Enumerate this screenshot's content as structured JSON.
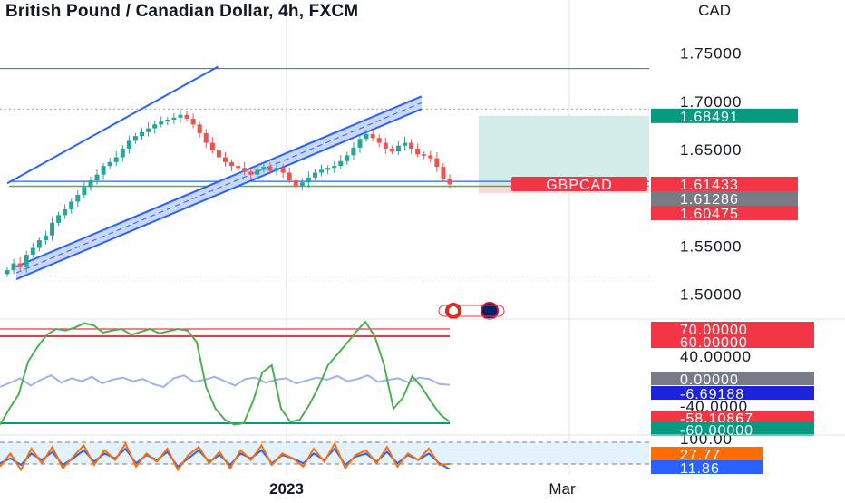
{
  "header": {
    "title": "British Pound / Canadian Dollar, 4h, FXCM",
    "currency": "CAD"
  },
  "colors": {
    "up": "#26a69a",
    "down": "#ef5350",
    "channel": "#2962ff",
    "channel_fill": "#cbd8f5",
    "target_zone": "#d3ece7",
    "stop_zone": "#fbdada",
    "stoch_k": "#4caf50",
    "stoch_d": "#e53935",
    "cci": "#9fb3ea",
    "osc_fast": "#ff6d00",
    "osc_slow": "#2962ff",
    "hline_red": "#f23645",
    "hline_green": "#089981",
    "text_blue": "#2962ff"
  },
  "chart_data": [
    {
      "type": "candlestick",
      "symbol": "GBPCAD",
      "timeframe": "4h",
      "y_ticks": [
        "1.75000",
        "1.70000",
        "1.65000",
        "1.55000",
        "1.50000"
      ],
      "ylim": [
        1.495,
        1.805
      ],
      "close_series": [
        1.525,
        1.532,
        1.528,
        1.541,
        1.548,
        1.556,
        1.561,
        1.574,
        1.582,
        1.588,
        1.596,
        1.603,
        1.611,
        1.618,
        1.624,
        1.633,
        1.637,
        1.642,
        1.651,
        1.659,
        1.664,
        1.668,
        1.672,
        1.676,
        1.679,
        1.681,
        1.683,
        1.686,
        1.682,
        1.676,
        1.667,
        1.657,
        1.649,
        1.642,
        1.637,
        1.633,
        1.631,
        1.627,
        1.624,
        1.629,
        1.632,
        1.628,
        1.631,
        1.626,
        1.618,
        1.612,
        1.616,
        1.621,
        1.626,
        1.629,
        1.631,
        1.633,
        1.638,
        1.644,
        1.652,
        1.661,
        1.666,
        1.662,
        1.657,
        1.651,
        1.648,
        1.654,
        1.657,
        1.651,
        1.645,
        1.644,
        1.641,
        1.632,
        1.619,
        1.614
      ],
      "x_ticks": [
        "2023",
        "Mar"
      ],
      "price_tags": [
        {
          "label": "1.68491",
          "color": "#089981"
        },
        {
          "label": "1.61433",
          "color": "#f23645"
        },
        {
          "label": "1.61286",
          "color": "#787b86"
        },
        {
          "label": "1.60475",
          "color": "#f23645"
        }
      ],
      "symbol_tag": "GBPCAD",
      "position": {
        "target": 1.68491,
        "entry": 1.61433,
        "stop": 1.60475
      },
      "horizontal_levels": [
        1.734,
        1.692,
        1.617,
        1.612,
        1.519
      ],
      "channels": [
        {
          "name": "upper",
          "from": [
            0,
            1.615
          ],
          "to": [
            34,
            1.736
          ]
        },
        {
          "name": "lower",
          "from": [
            0,
            1.525
          ],
          "to": [
            68,
            1.692
          ]
        }
      ]
    },
    {
      "type": "line",
      "name": "stochastic / CCI panel",
      "y_ticks": [
        "70.00000",
        "60.00000",
        "40.00000",
        "0.00000",
        "-6.69188",
        "-40.0000",
        "-58.10867",
        "-60.00000"
      ],
      "levels": [
        70,
        60,
        -60
      ],
      "series": [
        {
          "color": "#4caf50",
          "values": [
            -62,
            -40,
            -20,
            25,
            45,
            62,
            70,
            68,
            72,
            78,
            75,
            65,
            68,
            70,
            62,
            66,
            70,
            64,
            67,
            70,
            68,
            52,
            -10,
            -40,
            -55,
            -62,
            -60,
            -30,
            10,
            20,
            -40,
            -58,
            -55,
            -35,
            -10,
            20,
            35,
            50,
            66,
            80,
            60,
            20,
            -40,
            -25,
            5,
            -10,
            -30,
            -48,
            -58
          ]
        },
        {
          "color": "#9fb3ea",
          "values": [
            -10,
            -4,
            2,
            -8,
            0,
            6,
            -4,
            2,
            -2,
            4,
            -5,
            0,
            3,
            -2,
            1,
            -6,
            -10,
            2,
            6,
            -3,
            0,
            4,
            -2,
            -8,
            1,
            3,
            -4,
            0,
            2,
            -5,
            -1,
            3,
            0,
            5,
            -2,
            1,
            6,
            -3,
            0,
            2,
            -4,
            3,
            1,
            -6,
            -7
          ]
        }
      ],
      "current": [
        -6.69188,
        -58.10867
      ]
    },
    {
      "type": "line",
      "name": "oscillator panel",
      "y_ticks": [
        "100.00",
        "27.77",
        "11.86"
      ],
      "series": [
        {
          "color": "#ff6d00",
          "values": [
            20,
            60,
            10,
            75,
            30,
            80,
            15,
            50,
            85,
            25,
            70,
            40,
            90,
            20,
            60,
            35,
            75,
            10,
            55,
            80,
            30,
            65,
            15,
            70,
            40,
            85,
            25,
            60,
            45,
            20,
            75,
            35,
            90,
            15,
            55,
            70,
            30,
            80,
            20,
            60,
            40,
            75,
            25,
            28
          ]
        },
        {
          "color": "#2962ff",
          "values": [
            30,
            45,
            25,
            60,
            40,
            65,
            25,
            45,
            70,
            35,
            60,
            45,
            75,
            30,
            55,
            40,
            65,
            20,
            45,
            70,
            35,
            55,
            25,
            60,
            45,
            70,
            30,
            55,
            45,
            30,
            60,
            40,
            75,
            25,
            50,
            60,
            35,
            65,
            30,
            55,
            40,
            60,
            30,
            12
          ]
        }
      ],
      "current": [
        27.77,
        11.86
      ]
    }
  ]
}
